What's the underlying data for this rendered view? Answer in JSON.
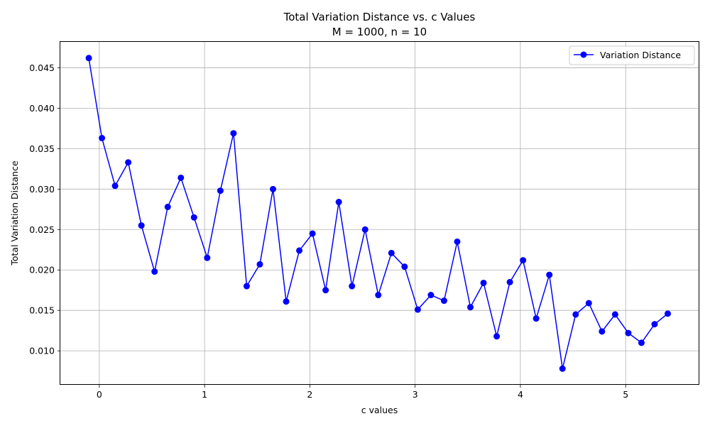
{
  "chart_data": {
    "type": "line",
    "title": "Total Variation Distance vs. c Values",
    "subtitle": "M = 1000, n = 10",
    "xlabel": "c values",
    "ylabel": "Total Variation Distance",
    "xlim": [
      -0.37,
      5.7
    ],
    "ylim": [
      0.0058,
      0.0482
    ],
    "x_ticks": [
      0,
      1,
      2,
      3,
      4,
      5
    ],
    "x_tick_labels": [
      "0",
      "1",
      "2",
      "3",
      "4",
      "5"
    ],
    "y_ticks": [
      0.01,
      0.015,
      0.02,
      0.025,
      0.03,
      0.035,
      0.04,
      0.045
    ],
    "y_tick_labels": [
      "0.010",
      "0.015",
      "0.020",
      "0.025",
      "0.030",
      "0.035",
      "0.040",
      "0.045"
    ],
    "grid": true,
    "legend_position": "top-right",
    "series": [
      {
        "name": "Variation Distance",
        "color": "#0000ff",
        "marker": "circle",
        "x": [
          -0.1,
          0.025,
          0.15,
          0.275,
          0.4,
          0.525,
          0.65,
          0.775,
          0.9,
          1.025,
          1.15,
          1.275,
          1.4,
          1.525,
          1.65,
          1.775,
          1.9,
          2.025,
          2.15,
          2.275,
          2.4,
          2.525,
          2.65,
          2.775,
          2.9,
          3.025,
          3.15,
          3.275,
          3.4,
          3.525,
          3.65,
          3.775,
          3.9,
          4.025,
          4.15,
          4.275,
          4.4,
          4.525,
          4.65,
          4.775,
          4.9,
          5.025,
          5.15,
          5.275,
          5.4
        ],
        "y": [
          0.0462,
          0.0363,
          0.0304,
          0.0333,
          0.0255,
          0.0198,
          0.0278,
          0.0314,
          0.0265,
          0.0215,
          0.0298,
          0.0369,
          0.018,
          0.0207,
          0.03,
          0.0161,
          0.0224,
          0.0245,
          0.0175,
          0.0284,
          0.018,
          0.025,
          0.0169,
          0.0221,
          0.0204,
          0.0151,
          0.0169,
          0.0162,
          0.0235,
          0.0154,
          0.0184,
          0.0118,
          0.0185,
          0.0212,
          0.014,
          0.0194,
          0.0078,
          0.0145,
          0.0159,
          0.0124,
          0.0145,
          0.0122,
          0.011,
          0.0133,
          0.0146
        ]
      }
    ]
  }
}
